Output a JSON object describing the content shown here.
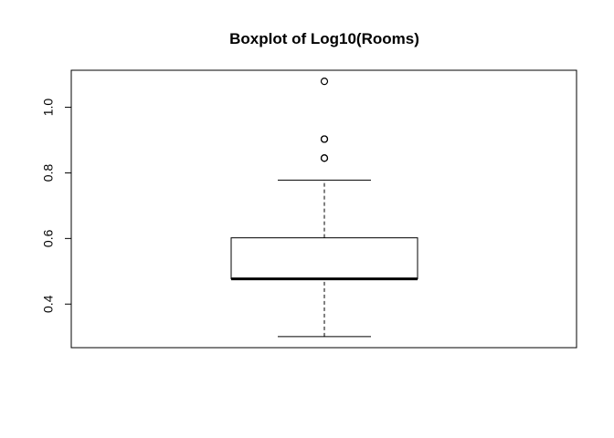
{
  "chart_data": {
    "type": "boxplot",
    "title": "Boxplot of Log10(Rooms)",
    "xlabel": "",
    "ylabel": "",
    "ylim": [
      0.3,
      1.1
    ],
    "yticks": [
      0.4,
      0.6,
      0.8,
      1.0
    ],
    "ytick_labels": [
      "0.4",
      "0.6",
      "0.8",
      "1.0"
    ],
    "grid": false,
    "legend": "none",
    "box": {
      "whisker_low": 0.301,
      "q1": 0.477,
      "median": 0.477,
      "q3": 0.602,
      "whisker_high": 0.778,
      "outliers": [
        0.845,
        0.845,
        0.903,
        0.903,
        1.079
      ]
    },
    "colors": {
      "stroke": "#000000",
      "background": "#ffffff"
    }
  }
}
